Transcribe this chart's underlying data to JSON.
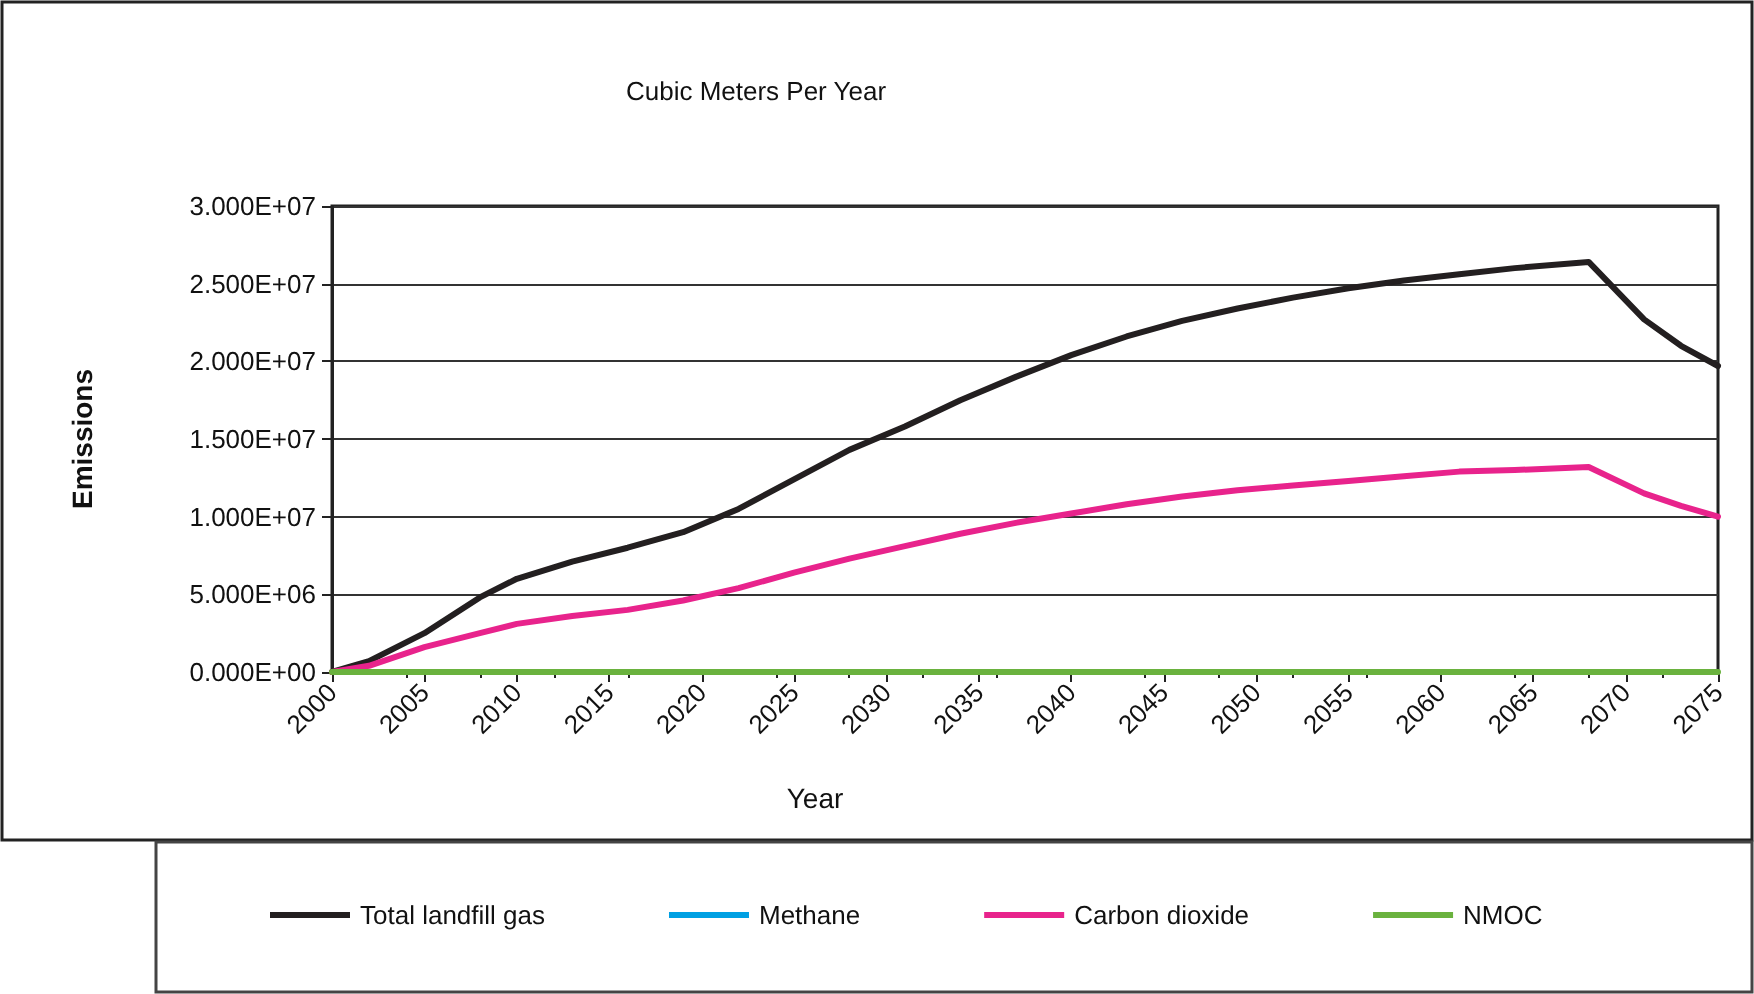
{
  "chart_data": {
    "type": "line",
    "title": "Cubic Meters Per Year",
    "xlabel": "Year",
    "ylabel": "Emissions",
    "x": [
      2000,
      2002,
      2005,
      2008,
      2010,
      2013,
      2016,
      2019,
      2022,
      2025,
      2028,
      2031,
      2034,
      2037,
      2040,
      2043,
      2046,
      2049,
      2052,
      2055,
      2058,
      2061,
      2064,
      2068,
      2071,
      2073,
      2075
    ],
    "series": [
      {
        "name": "Total landfill gas",
        "color": "#231f20",
        "values": [
          0,
          700000,
          2500000,
          4800000,
          6000000,
          7100000,
          8000000,
          9000000,
          10500000,
          12400000,
          14300000,
          15800000,
          17500000,
          19000000,
          20400000,
          21600000,
          22600000,
          23400000,
          24100000,
          24700000,
          25200000,
          25600000,
          26000000,
          26400000,
          22700000,
          21000000,
          19700000
        ]
      },
      {
        "name": "Methane",
        "color": "#00a0e3",
        "values": [
          null,
          null,
          null,
          null,
          null,
          null,
          null,
          null,
          null,
          null,
          null,
          null,
          null,
          null,
          null,
          null,
          null,
          null,
          null,
          null,
          null,
          null,
          null,
          null,
          null,
          null,
          null
        ]
      },
      {
        "name": "Carbon dioxide",
        "color": "#e8238c",
        "values": [
          0,
          400000,
          1600000,
          2500000,
          3100000,
          3600000,
          4000000,
          4600000,
          5400000,
          6400000,
          7300000,
          8100000,
          8900000,
          9600000,
          10200000,
          10800000,
          11300000,
          11700000,
          12000000,
          12300000,
          12600000,
          12900000,
          13000000,
          13200000,
          11500000,
          10700000,
          10000000
        ]
      },
      {
        "name": "NMOC",
        "color": "#6ab23e",
        "values": [
          0,
          0,
          0,
          0,
          0,
          0,
          0,
          0,
          0,
          0,
          0,
          0,
          0,
          0,
          0,
          0,
          0,
          0,
          0,
          0,
          0,
          0,
          0,
          0,
          0,
          0,
          0
        ]
      }
    ],
    "xlim": [
      2000,
      2075
    ],
    "xticks": [
      2000,
      2005,
      2010,
      2015,
      2020,
      2025,
      2030,
      2035,
      2040,
      2045,
      2050,
      2055,
      2060,
      2065,
      2070,
      2075
    ],
    "ylim": [
      0,
      30000000
    ],
    "yticks": [
      {
        "value": 0,
        "label": "0.000E+00"
      },
      {
        "value": 5000000,
        "label": "5.000E+06"
      },
      {
        "value": 10000000,
        "label": "1.000E+07"
      },
      {
        "value": 15000000,
        "label": "1.500E+07"
      },
      {
        "value": 20000000,
        "label": "2.000E+07"
      },
      {
        "value": 25000000,
        "label": "2.500E+07"
      },
      {
        "value": 30000000,
        "label": "3.000E+07"
      }
    ],
    "grid": "y",
    "legend": "bottom",
    "marker": "none"
  }
}
